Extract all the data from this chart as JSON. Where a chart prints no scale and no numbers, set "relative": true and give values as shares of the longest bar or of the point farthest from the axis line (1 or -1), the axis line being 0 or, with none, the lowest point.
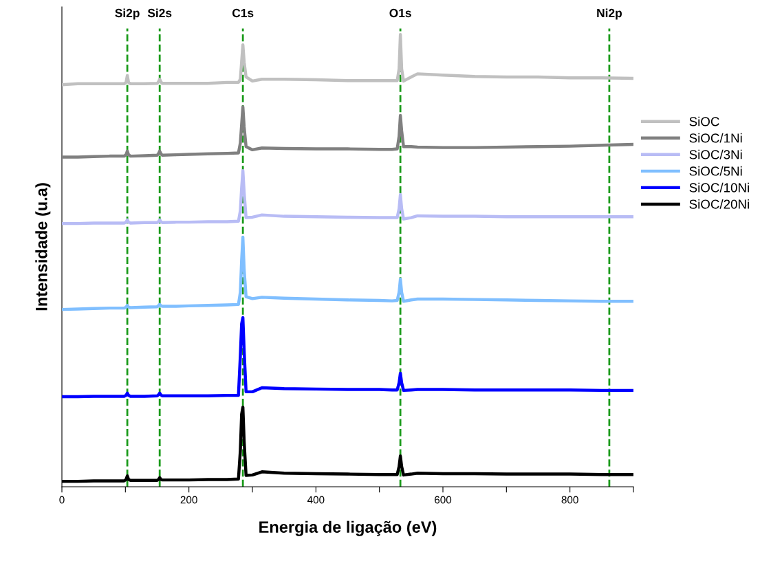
{
  "chart_data": {
    "type": "line",
    "relative": true,
    "xlabel": "Energia de ligação (eV)",
    "ylabel": "Intensidade (u.a)",
    "xlim": [
      0,
      900
    ],
    "xticks": [
      0,
      {
        "value": 100,
        "label": null
      },
      200,
      {
        "value": 300,
        "label": null
      },
      400,
      {
        "value": 500,
        "label": null
      },
      600,
      {
        "value": 700,
        "label": null
      },
      800,
      {
        "value": 900,
        "label": null
      }
    ],
    "grid": false,
    "legend": "right",
    "tick_labels": "x",
    "line_style": "solid",
    "marker": "none",
    "x": [
      0,
      25,
      50,
      75,
      98,
      101,
      103,
      105,
      108,
      130,
      150,
      152,
      154,
      156,
      158,
      180,
      200,
      230,
      260,
      278,
      281,
      283,
      285,
      287,
      290,
      300,
      315,
      350,
      400,
      450,
      500,
      520,
      528,
      531,
      533,
      535,
      538,
      550,
      560,
      600,
      650,
      700,
      750,
      800,
      850,
      900
    ],
    "series": [
      {
        "name": "SiOC",
        "color": "#c0c0c0",
        "values": [
          0.889,
          0.891,
          0.891,
          0.891,
          0.891,
          0.894,
          0.909,
          0.894,
          0.891,
          0.891,
          0.892,
          0.895,
          0.901,
          0.895,
          0.892,
          0.892,
          0.892,
          0.892,
          0.894,
          0.894,
          0.901,
          0.939,
          0.977,
          0.939,
          0.906,
          0.897,
          0.901,
          0.901,
          0.9,
          0.898,
          0.898,
          0.898,
          0.898,
          0.924,
          1.0,
          0.924,
          0.897,
          0.906,
          0.913,
          0.91,
          0.907,
          0.906,
          0.906,
          0.904,
          0.904,
          0.903
        ]
      },
      {
        "name": "SiOC/1Ni",
        "color": "#808080",
        "values": [
          0.729,
          0.729,
          0.73,
          0.731,
          0.731,
          0.734,
          0.742,
          0.734,
          0.731,
          0.732,
          0.733,
          0.736,
          0.742,
          0.736,
          0.733,
          0.734,
          0.735,
          0.736,
          0.737,
          0.738,
          0.76,
          0.8,
          0.84,
          0.795,
          0.752,
          0.745,
          0.749,
          0.748,
          0.747,
          0.747,
          0.746,
          0.746,
          0.747,
          0.775,
          0.821,
          0.787,
          0.752,
          0.752,
          0.751,
          0.75,
          0.75,
          0.751,
          0.752,
          0.753,
          0.755,
          0.757
        ]
      },
      {
        "name": "SiOC/3Ni",
        "color": "#b8bcf5",
        "values": [
          0.582,
          0.582,
          0.583,
          0.583,
          0.583,
          0.585,
          0.59,
          0.585,
          0.583,
          0.584,
          0.584,
          0.586,
          0.59,
          0.586,
          0.584,
          0.585,
          0.585,
          0.586,
          0.586,
          0.587,
          0.61,
          0.66,
          0.699,
          0.65,
          0.595,
          0.596,
          0.601,
          0.598,
          0.597,
          0.596,
          0.595,
          0.595,
          0.595,
          0.615,
          0.646,
          0.615,
          0.592,
          0.595,
          0.599,
          0.598,
          0.598,
          0.597,
          0.597,
          0.597,
          0.597,
          0.597
        ]
      },
      {
        "name": "SiOC/5Ni",
        "color": "#80bfff",
        "values": [
          0.392,
          0.393,
          0.394,
          0.395,
          0.395,
          0.397,
          0.401,
          0.397,
          0.396,
          0.397,
          0.398,
          0.4,
          0.403,
          0.4,
          0.399,
          0.399,
          0.4,
          0.401,
          0.402,
          0.403,
          0.43,
          0.5,
          0.552,
          0.48,
          0.42,
          0.416,
          0.419,
          0.417,
          0.415,
          0.413,
          0.412,
          0.411,
          0.412,
          0.43,
          0.459,
          0.43,
          0.41,
          0.413,
          0.415,
          0.415,
          0.414,
          0.413,
          0.412,
          0.411,
          0.41,
          0.41
        ]
      },
      {
        "name": "SiOC/10Ni",
        "color": "#0000ff",
        "values": [
          0.199,
          0.199,
          0.2,
          0.2,
          0.2,
          0.202,
          0.207,
          0.202,
          0.2,
          0.2,
          0.201,
          0.203,
          0.207,
          0.203,
          0.201,
          0.201,
          0.201,
          0.201,
          0.202,
          0.202,
          0.29,
          0.36,
          0.374,
          0.3,
          0.21,
          0.21,
          0.219,
          0.217,
          0.216,
          0.215,
          0.215,
          0.214,
          0.214,
          0.23,
          0.251,
          0.23,
          0.213,
          0.214,
          0.215,
          0.215,
          0.214,
          0.214,
          0.214,
          0.214,
          0.213,
          0.213
        ]
      },
      {
        "name": "SiOC/20Ni",
        "color": "#000000",
        "values": [
          0.012,
          0.012,
          0.013,
          0.013,
          0.013,
          0.016,
          0.024,
          0.016,
          0.014,
          0.014,
          0.014,
          0.016,
          0.02,
          0.016,
          0.015,
          0.015,
          0.015,
          0.016,
          0.016,
          0.017,
          0.08,
          0.16,
          0.176,
          0.1,
          0.025,
          0.026,
          0.033,
          0.03,
          0.029,
          0.028,
          0.027,
          0.027,
          0.027,
          0.045,
          0.068,
          0.045,
          0.026,
          0.028,
          0.03,
          0.029,
          0.029,
          0.028,
          0.028,
          0.028,
          0.027,
          0.027
        ]
      }
    ],
    "ref_lines": [
      {
        "axis": "x",
        "value": 103,
        "label": "Si2p",
        "color": "#1a9a1a",
        "line_style": "dashed"
      },
      {
        "axis": "x",
        "value": 154,
        "label": "Si2s",
        "color": "#1a9a1a",
        "line_style": "dashed"
      },
      {
        "axis": "x",
        "value": 285,
        "label": "C1s",
        "color": "#1a9a1a",
        "line_style": "dashed"
      },
      {
        "axis": "x",
        "value": 533,
        "label": "O1s",
        "color": "#1a9a1a",
        "line_style": "dashed"
      },
      {
        "axis": "x",
        "value": 862,
        "label": "Ni2p",
        "color": "#1a9a1a",
        "line_style": "dashed"
      }
    ]
  }
}
